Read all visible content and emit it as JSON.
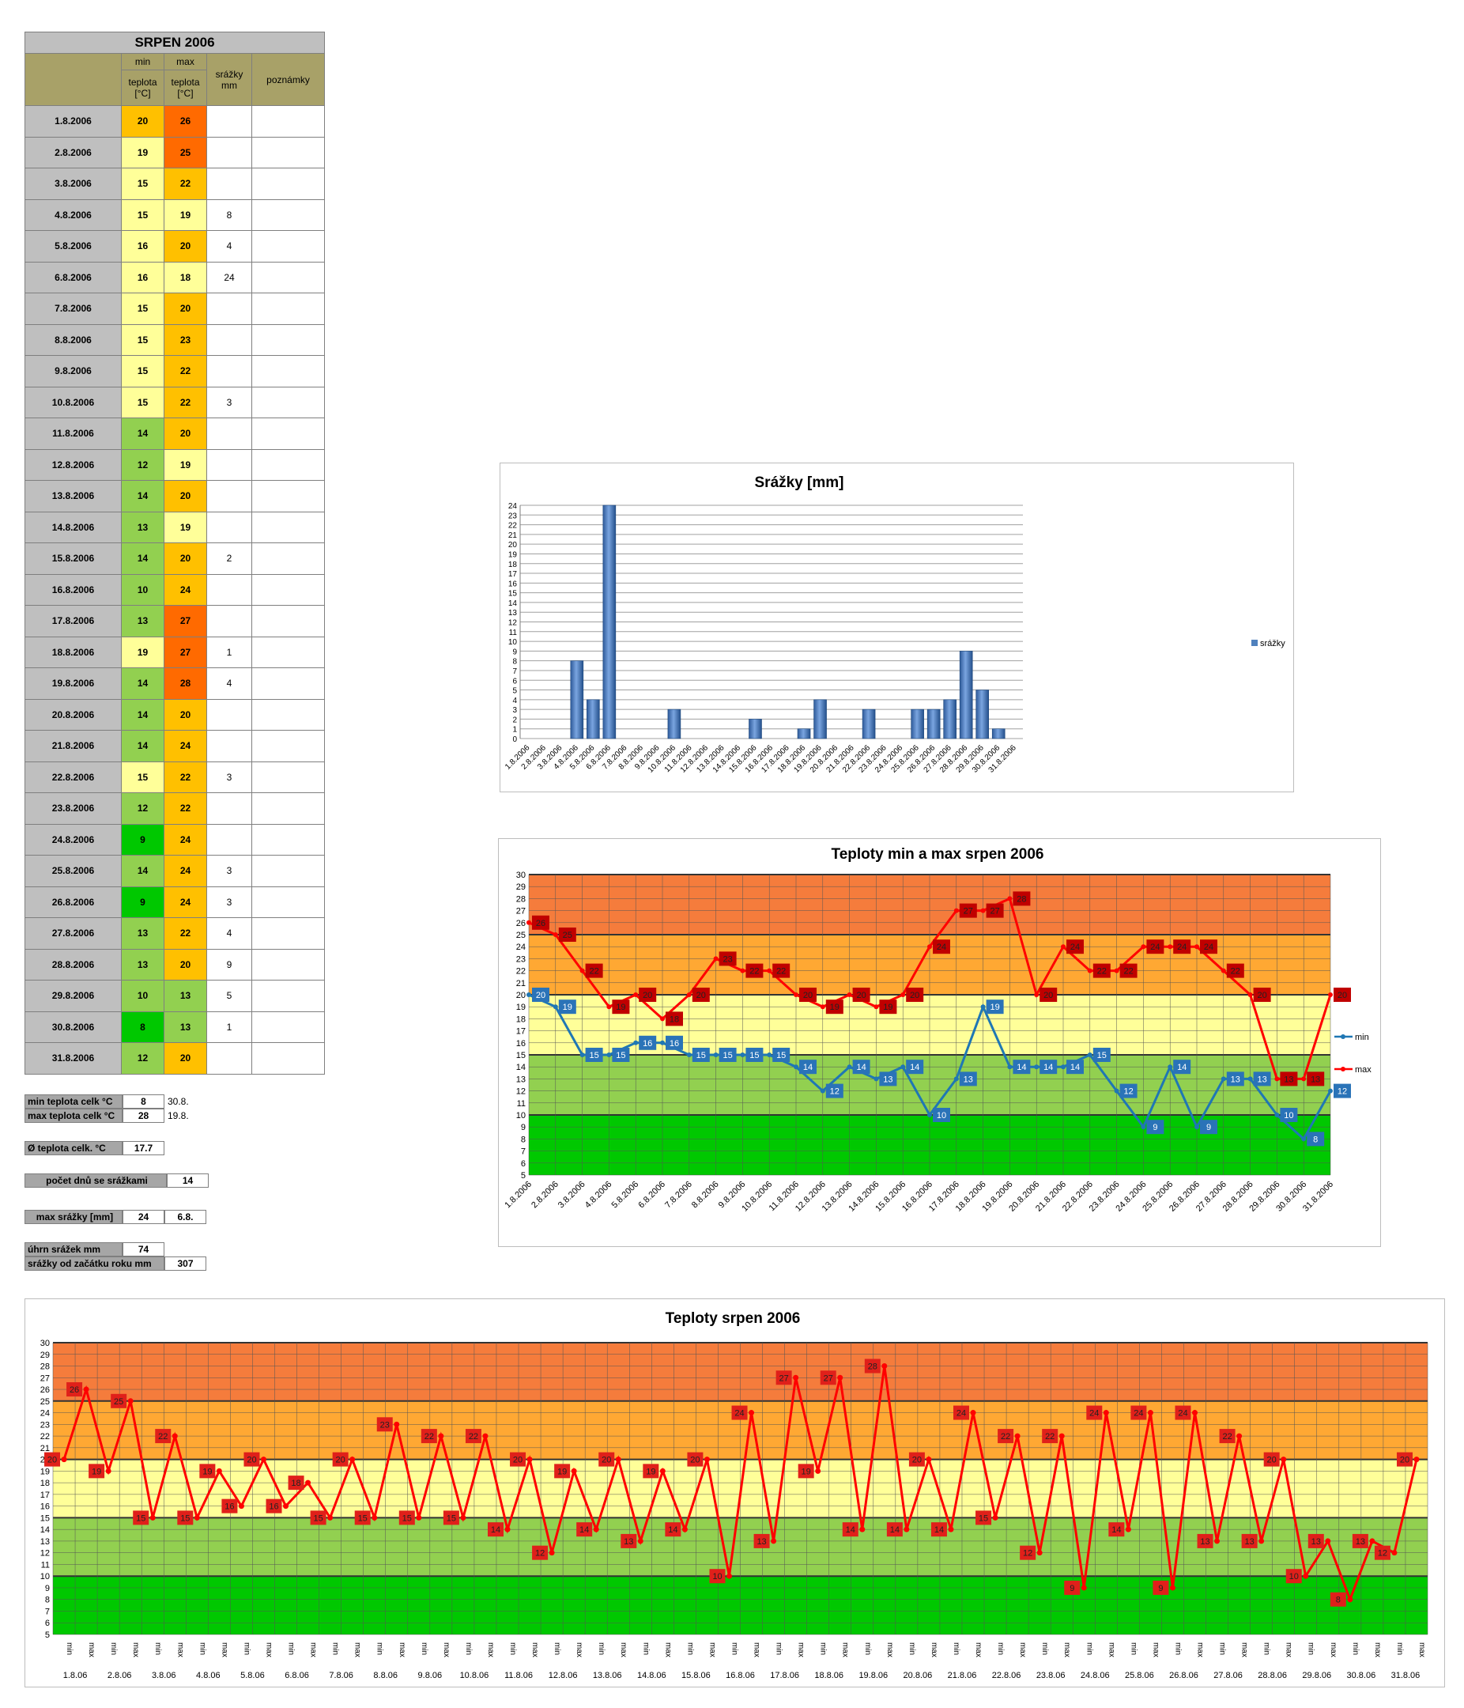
{
  "table": {
    "title": "SRPEN 2006",
    "head": {
      "min_top": "min",
      "max_top": "max",
      "min_l1": "teplota",
      "min_l2": "[°C]",
      "max_l1": "teplota",
      "max_l2": "[°C]",
      "rain_l1": "srážky",
      "rain_l2": "mm",
      "notes": "poznámky"
    },
    "rows": [
      {
        "date": "1.8.2006",
        "min": "20",
        "max": "26",
        "rain": ""
      },
      {
        "date": "2.8.2006",
        "min": "19",
        "max": "25",
        "rain": ""
      },
      {
        "date": "3.8.2006",
        "min": "15",
        "max": "22",
        "rain": ""
      },
      {
        "date": "4.8.2006",
        "min": "15",
        "max": "19",
        "rain": "8"
      },
      {
        "date": "5.8.2006",
        "min": "16",
        "max": "20",
        "rain": "4"
      },
      {
        "date": "6.8.2006",
        "min": "16",
        "max": "18",
        "rain": "24"
      },
      {
        "date": "7.8.2006",
        "min": "15",
        "max": "20",
        "rain": ""
      },
      {
        "date": "8.8.2006",
        "min": "15",
        "max": "23",
        "rain": ""
      },
      {
        "date": "9.8.2006",
        "min": "15",
        "max": "22",
        "rain": ""
      },
      {
        "date": "10.8.2006",
        "min": "15",
        "max": "22",
        "rain": "3"
      },
      {
        "date": "11.8.2006",
        "min": "14",
        "max": "20",
        "rain": ""
      },
      {
        "date": "12.8.2006",
        "min": "12",
        "max": "19",
        "rain": ""
      },
      {
        "date": "13.8.2006",
        "min": "14",
        "max": "20",
        "rain": ""
      },
      {
        "date": "14.8.2006",
        "min": "13",
        "max": "19",
        "rain": ""
      },
      {
        "date": "15.8.2006",
        "min": "14",
        "max": "20",
        "rain": "2"
      },
      {
        "date": "16.8.2006",
        "min": "10",
        "max": "24",
        "rain": ""
      },
      {
        "date": "17.8.2006",
        "min": "13",
        "max": "27",
        "rain": ""
      },
      {
        "date": "18.8.2006",
        "min": "19",
        "max": "27",
        "rain": "1"
      },
      {
        "date": "19.8.2006",
        "min": "14",
        "max": "28",
        "rain": "4"
      },
      {
        "date": "20.8.2006",
        "min": "14",
        "max": "20",
        "rain": ""
      },
      {
        "date": "21.8.2006",
        "min": "14",
        "max": "24",
        "rain": ""
      },
      {
        "date": "22.8.2006",
        "min": "15",
        "max": "22",
        "rain": "3"
      },
      {
        "date": "23.8.2006",
        "min": "12",
        "max": "22",
        "rain": ""
      },
      {
        "date": "24.8.2006",
        "min": "9",
        "max": "24",
        "rain": ""
      },
      {
        "date": "25.8.2006",
        "min": "14",
        "max": "24",
        "rain": "3"
      },
      {
        "date": "26.8.2006",
        "min": "9",
        "max": "24",
        "rain": "3"
      },
      {
        "date": "27.8.2006",
        "min": "13",
        "max": "22",
        "rain": "4"
      },
      {
        "date": "28.8.2006",
        "min": "13",
        "max": "20",
        "rain": "9"
      },
      {
        "date": "29.8.2006",
        "min": "10",
        "max": "13",
        "rain": "5"
      },
      {
        "date": "30.8.2006",
        "min": "8",
        "max": "13",
        "rain": "1"
      },
      {
        "date": "31.8.2006",
        "min": "12",
        "max": "20",
        "rain": ""
      }
    ]
  },
  "summary": {
    "min_label": "min teplota celk °C",
    "min_value": "8",
    "min_date": "30.8.",
    "max_label": "max teplota celk °C",
    "max_value": "28",
    "max_date": "19.8.",
    "avg_label": "Ø teplota celk. °C",
    "avg_value": "17.7",
    "raindays_label": "počet dnů se srážkami",
    "raindays_value": "14",
    "maxrain_label": "max srážky [mm]",
    "maxrain_value": "24",
    "maxrain_date": "6.8.",
    "total_label": "úhrn srážek  mm",
    "total_value": "74",
    "ytd_label": "srážky od začátku roku mm",
    "ytd_value": "307"
  },
  "colors": {
    "cold": "#00c800",
    "cool": "#92d050",
    "mild": "#ffff99",
    "warm": "#ffc000",
    "hot": "#ff6a00",
    "bar": "#4f81bd",
    "min_line": "#1f77b4",
    "max_line": "#ff0000"
  },
  "chart_data": [
    {
      "type": "bar",
      "title": "Srážky [mm]",
      "categories": [
        "1.8.2006",
        "2.8.2006",
        "3.8.2006",
        "4.8.2006",
        "5.8.2006",
        "6.8.2006",
        "7.8.2006",
        "8.8.2006",
        "9.8.2006",
        "10.8.2006",
        "11.8.2006",
        "12.8.2006",
        "13.8.2006",
        "14.8.2006",
        "15.8.2006",
        "16.8.2006",
        "17.8.2006",
        "18.8.2006",
        "19.8.2006",
        "20.8.2006",
        "21.8.2006",
        "22.8.2006",
        "23.8.2006",
        "24.8.2006",
        "25.8.2006",
        "26.8.2006",
        "27.8.2006",
        "28.8.2006",
        "29.8.2006",
        "30.8.2006",
        "31.8.2006"
      ],
      "series": [
        {
          "name": "srážky",
          "values": [
            0,
            0,
            0,
            8,
            4,
            24,
            0,
            0,
            0,
            3,
            0,
            0,
            0,
            0,
            2,
            0,
            0,
            1,
            4,
            0,
            0,
            3,
            0,
            0,
            3,
            3,
            4,
            9,
            5,
            1,
            0
          ]
        }
      ],
      "ylim": [
        0,
        24
      ],
      "legend": "right",
      "grid": true
    },
    {
      "type": "line",
      "title": "Teploty min a max srpen 2006",
      "categories": [
        "1.8.2006",
        "2.8.2006",
        "3.8.2006",
        "4.8.2006",
        "5.8.2006",
        "6.8.2006",
        "7.8.2006",
        "8.8.2006",
        "9.8.2006",
        "10.8.2006",
        "11.8.2006",
        "12.8.2006",
        "13.8.2006",
        "14.8.2006",
        "15.8.2006",
        "16.8.2006",
        "17.8.2006",
        "18.8.2006",
        "19.8.2006",
        "20.8.2006",
        "21.8.2006",
        "22.8.2006",
        "23.8.2006",
        "24.8.2006",
        "25.8.2006",
        "26.8.2006",
        "27.8.2006",
        "28.8.2006",
        "29.8.2006",
        "30.8.2006",
        "31.8.2006"
      ],
      "series": [
        {
          "name": "min",
          "values": [
            20,
            19,
            15,
            15,
            16,
            16,
            15,
            15,
            15,
            15,
            14,
            12,
            14,
            13,
            14,
            10,
            13,
            19,
            14,
            14,
            14,
            15,
            12,
            9,
            14,
            9,
            13,
            13,
            10,
            8,
            12
          ]
        },
        {
          "name": "max",
          "values": [
            26,
            25,
            22,
            19,
            20,
            18,
            20,
            23,
            22,
            22,
            20,
            19,
            20,
            19,
            20,
            24,
            27,
            27,
            28,
            20,
            24,
            22,
            22,
            24,
            24,
            24,
            22,
            20,
            13,
            13,
            20
          ]
        }
      ],
      "ylim": [
        5,
        30
      ],
      "legend": "right",
      "grid": true
    },
    {
      "type": "line",
      "title": "Teploty srpen 2006",
      "x_pairs": [
        "min",
        "max"
      ],
      "categories": [
        "1.8.06",
        "2.8.06",
        "3.8.06",
        "4.8.06",
        "5.8.06",
        "6.8.06",
        "7.8.06",
        "8.8.06",
        "9.8.06",
        "10.8.06",
        "11.8.06",
        "12.8.06",
        "13.8.06",
        "14.8.06",
        "15.8.06",
        "16.8.06",
        "17.8.06",
        "18.8.06",
        "19.8.06",
        "20.8.06",
        "21.8.06",
        "22.8.06",
        "23.8.06",
        "24.8.06",
        "25.8.06",
        "26.8.06",
        "27.8.06",
        "28.8.06",
        "29.8.06",
        "30.8.06",
        "31.8.06"
      ],
      "ylim": [
        5,
        30
      ],
      "grid": true
    }
  ]
}
